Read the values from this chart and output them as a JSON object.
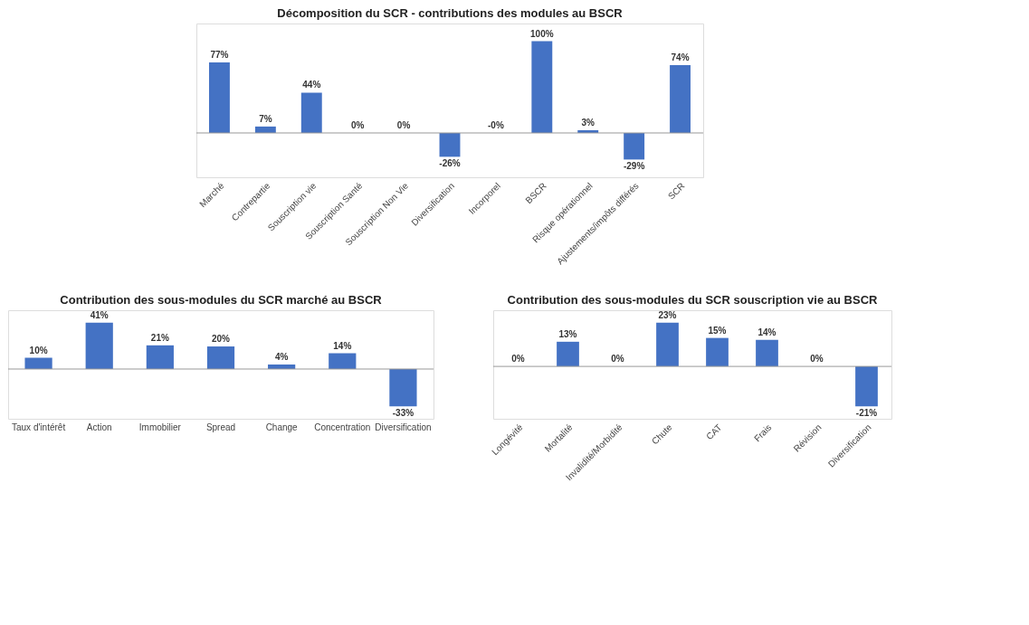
{
  "chart_data": [
    {
      "type": "bar",
      "title": "Décomposition du SCR - contributions des modules au BSCR",
      "categories": [
        "Marché",
        "Contrepartie",
        "Souscription vie",
        "Souscription Santé",
        "Souscription Non Vie",
        "Diversification",
        "Incorporel",
        "BSCR",
        "Risque opérationnel",
        "Ajustements/impôts différés",
        "SCR"
      ],
      "values": [
        77,
        7,
        44,
        0,
        0,
        -26,
        0,
        100,
        3,
        -29,
        74
      ],
      "value_labels": [
        "77%",
        "7%",
        "44%",
        "0%",
        "0%",
        "-26%",
        "-0%",
        "100%",
        "3%",
        "-29%",
        "74%"
      ],
      "color": "#4472c4"
    },
    {
      "type": "bar",
      "title": "Contribution des sous-modules du SCR marché au BSCR",
      "categories": [
        "Taux d'intérêt",
        "Action",
        "Immobilier",
        "Spread",
        "Change",
        "Concentration",
        "Diversification"
      ],
      "values": [
        10,
        41,
        21,
        20,
        4,
        14,
        -33
      ],
      "value_labels": [
        "10%",
        "41%",
        "21%",
        "20%",
        "4%",
        "14%",
        "-33%"
      ],
      "color": "#4472c4"
    },
    {
      "type": "bar",
      "title": "Contribution des sous-modules du SCR souscription vie au BSCR",
      "categories": [
        "Longévité",
        "Mortalité",
        "Invalidité/Morbidité",
        "Chute",
        "CAT",
        "Frais",
        "Révision",
        "Diversification"
      ],
      "values": [
        0,
        13,
        0,
        23,
        15,
        14,
        0,
        -21
      ],
      "value_labels": [
        "0%",
        "13%",
        "0%",
        "23%",
        "15%",
        "14%",
        "0%",
        "-21%"
      ],
      "color": "#4472c4"
    }
  ]
}
